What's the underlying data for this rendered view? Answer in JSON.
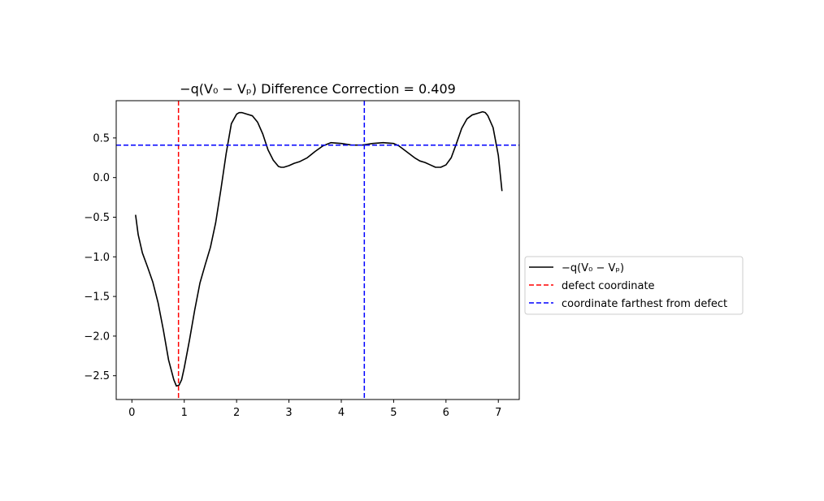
{
  "chart_data": {
    "type": "line",
    "title": "−q(V₀ − Vₚ) Difference Correction = 0.409",
    "xlabel": "",
    "ylabel": "",
    "xlim": [
      -0.3,
      7.4
    ],
    "ylim": [
      -2.8,
      0.97
    ],
    "x_ticks": [
      0,
      1,
      2,
      3,
      4,
      5,
      6,
      7
    ],
    "x_tick_labels": [
      "0",
      "1",
      "2",
      "3",
      "4",
      "5",
      "6",
      "7"
    ],
    "y_ticks": [
      0.5,
      0.0,
      -0.5,
      -1.0,
      -1.5,
      -2.0,
      -2.5
    ],
    "y_tick_labels": [
      "0.5",
      "0.0",
      "−0.5",
      "−1.0",
      "−1.5",
      "−2.0",
      "−2.5"
    ],
    "grid": false,
    "legend_position": "outside right",
    "series": [
      {
        "name": "−q(V₀ − Vₚ)",
        "color": "#000000",
        "style": "solid",
        "x": [
          0.07,
          0.12,
          0.2,
          0.3,
          0.4,
          0.5,
          0.6,
          0.7,
          0.8,
          0.85,
          0.9,
          0.95,
          1.0,
          1.1,
          1.2,
          1.3,
          1.4,
          1.5,
          1.6,
          1.7,
          1.8,
          1.9,
          2.0,
          2.05,
          2.1,
          2.15,
          2.2,
          2.3,
          2.4,
          2.5,
          2.6,
          2.7,
          2.8,
          2.85,
          2.9,
          3.0,
          3.1,
          3.2,
          3.35,
          3.5,
          3.65,
          3.8,
          4.0,
          4.2,
          4.4,
          4.6,
          4.8,
          5.0,
          5.1,
          5.2,
          5.3,
          5.4,
          5.5,
          5.6,
          5.7,
          5.8,
          5.9,
          6.0,
          6.1,
          6.2,
          6.3,
          6.4,
          6.5,
          6.6,
          6.7,
          6.75,
          6.8,
          6.9,
          7.0,
          7.07
        ],
        "values": [
          -0.47,
          -0.72,
          -0.95,
          -1.13,
          -1.32,
          -1.58,
          -1.92,
          -2.3,
          -2.55,
          -2.63,
          -2.62,
          -2.55,
          -2.4,
          -2.05,
          -1.67,
          -1.33,
          -1.1,
          -0.88,
          -0.57,
          -0.15,
          0.3,
          0.68,
          0.8,
          0.82,
          0.82,
          0.81,
          0.8,
          0.78,
          0.7,
          0.55,
          0.35,
          0.22,
          0.14,
          0.13,
          0.13,
          0.15,
          0.18,
          0.2,
          0.25,
          0.33,
          0.4,
          0.44,
          0.43,
          0.41,
          0.41,
          0.43,
          0.44,
          0.43,
          0.4,
          0.35,
          0.3,
          0.25,
          0.21,
          0.19,
          0.16,
          0.13,
          0.13,
          0.16,
          0.25,
          0.43,
          0.62,
          0.74,
          0.79,
          0.81,
          0.83,
          0.82,
          0.78,
          0.63,
          0.28,
          -0.17
        ]
      },
      {
        "name": "defect coordinate",
        "color": "#ff0000",
        "style": "dashed",
        "orientation": "vertical",
        "x_value": 0.89
      },
      {
        "name": "coordinate farthest from defect",
        "color": "#0000ff",
        "style": "dashed",
        "orientation": "vertical",
        "x_value": 4.44
      },
      {
        "color": "#0000ff",
        "style": "dashed",
        "orientation": "horizontal",
        "y_value": 0.409
      }
    ]
  }
}
